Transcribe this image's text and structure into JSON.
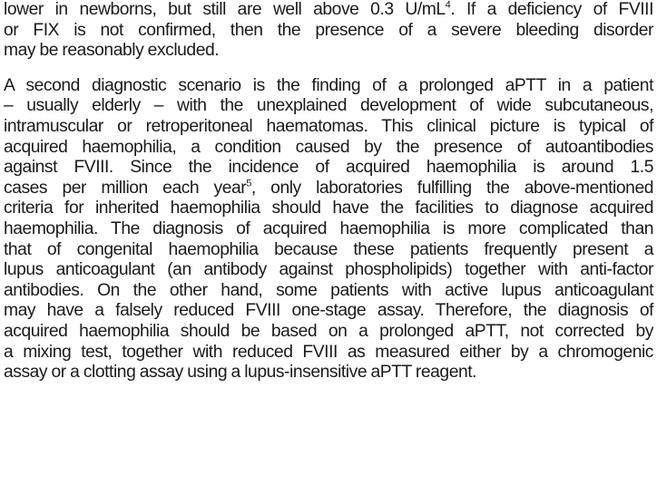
{
  "paragraphs": [
    {
      "lines": [
        "lower in newborns, but still are well above 0.3 U/mL",
        "or FIX is not confirmed, then the presence of a severe bleeding disorder",
        "may be reasonably excluded."
      ],
      "sup_after_line_0": "4",
      "line_0_tail": ". If a deficiency of FVIII"
    },
    {
      "lines": [
        "A second diagnostic scenario is the finding of a prolonged aPTT in a patient",
        "– usually elderly – with the unexplained development of wide subcutaneous,",
        "intramuscular or retroperitoneal haematomas. This clinical picture is typical of",
        "acquired haemophilia, a condition caused by the presence of autoantibodies",
        "against FVIII. Since the incidence of acquired haemophilia is around 1.5",
        "cases per million each year",
        "criteria for inherited haemophilia should have the facilities to diagnose acquired",
        "haemophilia. The diagnosis of acquired haemophilia is more complicated than",
        "that of congenital haemophilia because these patients frequently present a",
        "lupus anticoagulant (an antibody against phospholipids) together with anti-factor",
        "antibodies. On the other hand, some patients with active lupus anticoagulant",
        "may have a falsely reduced FVIII one-stage assay. Therefore, the diagnosis of",
        "acquired haemophilia should be based on a prolonged aPTT, not corrected by",
        "a mixing test, together with reduced FVIII as measured either by a chromogenic",
        "assay or a clotting assay using a lupus-insensitive aPTT reagent."
      ],
      "sup_after_line_5": "5",
      "line_5_tail": ", only laboratories fulfilling the above-mentioned"
    }
  ]
}
